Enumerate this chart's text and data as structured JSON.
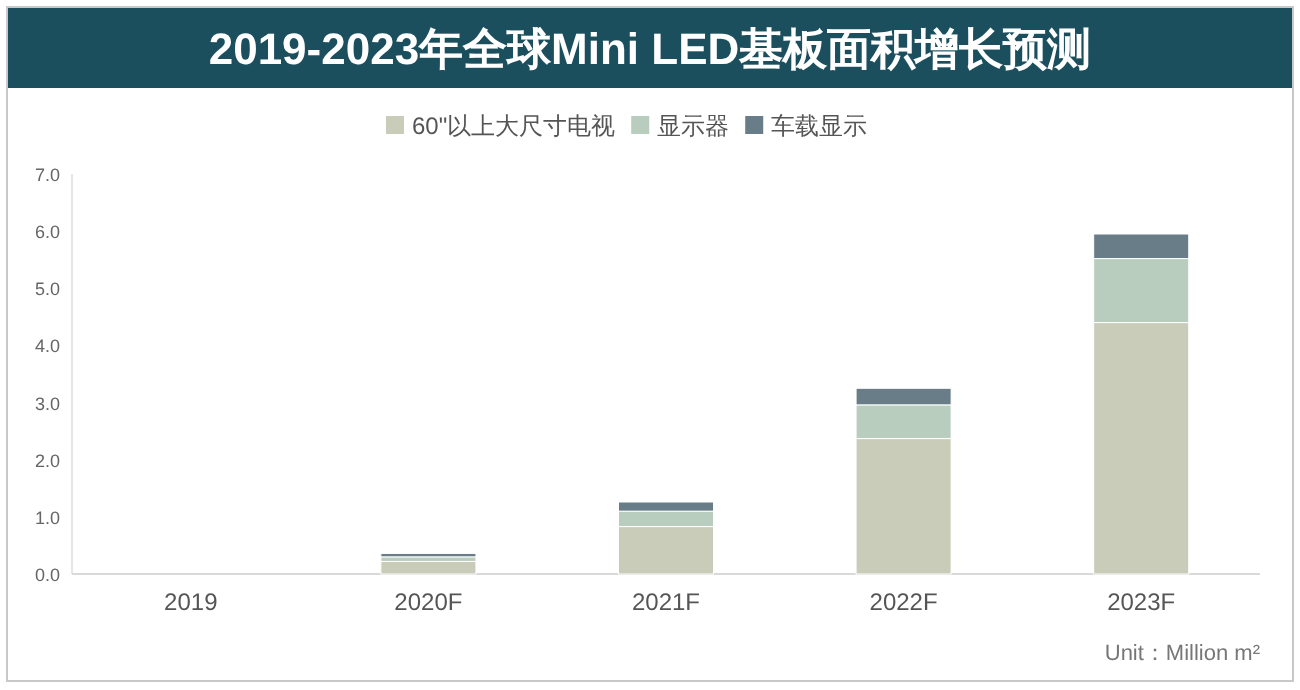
{
  "chart_data": {
    "type": "bar",
    "stacked": true,
    "title": "2019-2023年全球Mini LED基板面积增长预测",
    "categories": [
      "2019",
      "2020F",
      "2021F",
      "2022F",
      "2023F"
    ],
    "series": [
      {
        "name": "60\"以上大尺寸电视",
        "color": "#c9ccb8",
        "values": [
          0,
          0.22,
          0.83,
          2.37,
          4.4
        ]
      },
      {
        "name": "显示器",
        "color": "#b9cdbf",
        "values": [
          0,
          0.08,
          0.27,
          0.59,
          1.12
        ]
      },
      {
        "name": "车载显示",
        "color": "#687d88",
        "values": [
          0,
          0.06,
          0.16,
          0.29,
          0.43
        ]
      }
    ],
    "ylim": [
      0,
      7
    ],
    "yticks": [
      {
        "value": 0,
        "label": "0.0"
      },
      {
        "value": 1,
        "label": "1.0"
      },
      {
        "value": 2,
        "label": "2.0"
      },
      {
        "value": 3,
        "label": "3.0"
      },
      {
        "value": 4,
        "label": "4.0"
      },
      {
        "value": 5,
        "label": "5.0"
      },
      {
        "value": 6,
        "label": "6.0"
      },
      {
        "value": 7,
        "label": "7.0"
      }
    ],
    "legend": "top",
    "annotations": [
      "Unit：Million m²"
    ]
  }
}
